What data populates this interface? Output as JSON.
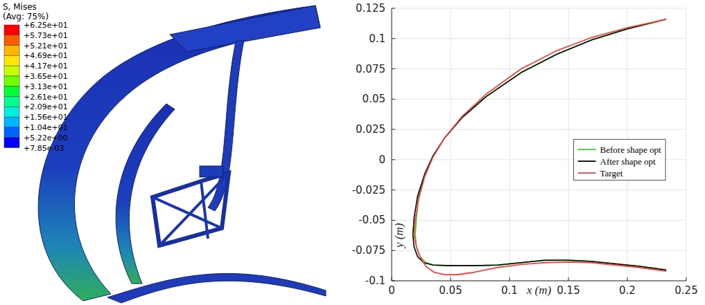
{
  "chart_data": {
    "type": "line",
    "xlabel": "x (m)",
    "ylabel": "y (m)",
    "xlim": [
      0,
      0.25
    ],
    "ylim": [
      -0.1,
      0.125
    ],
    "xticks": [
      0,
      0.05,
      0.1,
      0.15,
      0.2,
      0.25
    ],
    "yticks": [
      -0.1,
      -0.075,
      -0.05,
      -0.025,
      0,
      0.025,
      0.05,
      0.075,
      0.1,
      0.125
    ],
    "grid": true,
    "legend": "right",
    "series": [
      {
        "name": "Before shape opt",
        "color": "#33dd33",
        "line_style": "solid",
        "x": [
          0.233,
          0.2,
          0.17,
          0.14,
          0.11,
          0.08,
          0.06,
          0.045,
          0.035,
          0.028,
          0.023,
          0.021,
          0.02,
          0.021,
          0.024,
          0.029,
          0.036,
          0.05,
          0.07,
          0.09,
          0.11,
          0.13,
          0.15,
          0.17,
          0.19,
          0.21,
          0.233
        ],
        "values": [
          0.116,
          0.108,
          0.099,
          0.087,
          0.072,
          0.052,
          0.035,
          0.018,
          0.003,
          -0.012,
          -0.03,
          -0.048,
          -0.062,
          -0.072,
          -0.08,
          -0.085,
          -0.087,
          -0.0875,
          -0.0875,
          -0.087,
          -0.085,
          -0.083,
          -0.083,
          -0.084,
          -0.086,
          -0.088,
          -0.091
        ]
      },
      {
        "name": "After shape opt",
        "color": "#000000",
        "line_style": "solid",
        "x": [
          0.233,
          0.2,
          0.17,
          0.14,
          0.11,
          0.08,
          0.06,
          0.045,
          0.035,
          0.028,
          0.022,
          0.019,
          0.018,
          0.019,
          0.022,
          0.027,
          0.035,
          0.05,
          0.07,
          0.09,
          0.11,
          0.13,
          0.15,
          0.17,
          0.19,
          0.21,
          0.233
        ],
        "values": [
          0.116,
          0.108,
          0.099,
          0.087,
          0.072,
          0.052,
          0.035,
          0.018,
          0.003,
          -0.012,
          -0.03,
          -0.048,
          -0.062,
          -0.072,
          -0.08,
          -0.085,
          -0.087,
          -0.0875,
          -0.0875,
          -0.087,
          -0.085,
          -0.083,
          -0.083,
          -0.084,
          -0.086,
          -0.088,
          -0.091
        ]
      },
      {
        "name": "Target",
        "color": "#ee4444",
        "line_style": "solid",
        "x": [
          0.233,
          0.2,
          0.17,
          0.14,
          0.11,
          0.08,
          0.06,
          0.045,
          0.035,
          0.028,
          0.023,
          0.02,
          0.019,
          0.021,
          0.024,
          0.029,
          0.036,
          0.045,
          0.055,
          0.07,
          0.09,
          0.11,
          0.13,
          0.15,
          0.17,
          0.19,
          0.21,
          0.233
        ],
        "values": [
          0.116,
          0.109,
          0.101,
          0.09,
          0.075,
          0.054,
          0.036,
          0.018,
          0.002,
          -0.014,
          -0.032,
          -0.05,
          -0.062,
          -0.072,
          -0.08,
          -0.088,
          -0.093,
          -0.095,
          -0.095,
          -0.093,
          -0.089,
          -0.0865,
          -0.085,
          -0.0845,
          -0.085,
          -0.087,
          -0.089,
          -0.092
        ]
      }
    ]
  },
  "contour_legend": {
    "title": "S, Mises",
    "subtitle": "(Avg: 75%)",
    "labels": [
      "+6.25e+01",
      "+5.73e+01",
      "+5.21e+01",
      "+4.69e+01",
      "+4.17e+01",
      "+3.65e+01",
      "+3.13e+01",
      "+2.61e+01",
      "+2.09e+01",
      "+1.56e+01",
      "+1.04e+01",
      "+5.22e+00",
      "+7.85e-03"
    ],
    "colors": [
      "#ff0000",
      "#ff5c00",
      "#ffb400",
      "#ffe600",
      "#c8ff00",
      "#70ff00",
      "#00ff30",
      "#00ff90",
      "#00f0e0",
      "#00b4ff",
      "#0064ff",
      "#0000ff"
    ]
  }
}
